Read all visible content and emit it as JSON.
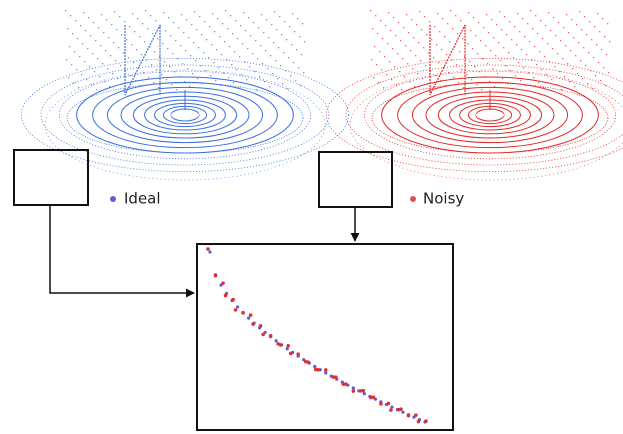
{
  "legend": [
    {
      "label": "Ideal"
    },
    {
      "label": "Noisy"
    }
  ]
}
